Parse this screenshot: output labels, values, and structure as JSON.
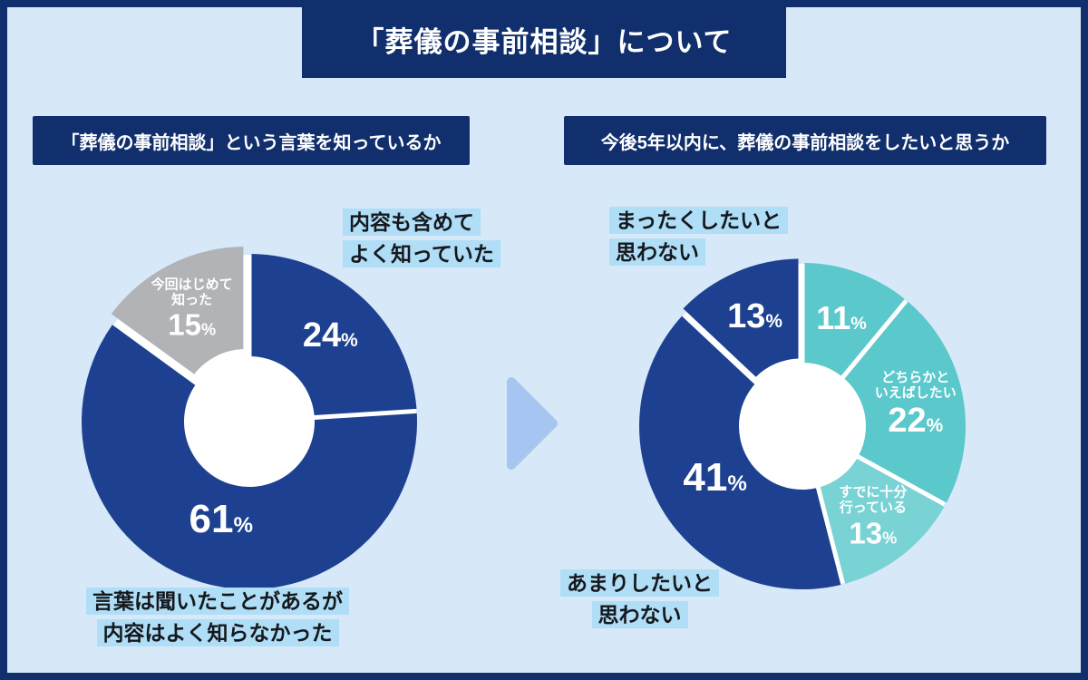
{
  "header": {
    "title": "「葬儀の事前相談」について"
  },
  "panels": [
    {
      "header": "「葬儀の事前相談」という言葉を知っているか",
      "callout_top": "内容も含めて\nよく知っていた",
      "callout_bottom": "言葉は聞いたことがあるが\n内容はよく知らなかった"
    },
    {
      "header": "今後5年以内に、葬儀の事前相談をしたいと思うか",
      "callout_top": "まったくしたいと\n思わない",
      "callout_bottom": "あまりしたいと\n思わない"
    }
  ],
  "colors": {
    "frame_navy": "#112f6d",
    "slice_navy": "#1d4190",
    "slice_teal": "#5bc8cb",
    "slice_teal_light": "#79d2d4",
    "slice_gray": "#b2b3b6",
    "background": "#d7e8f8",
    "label_highlight": "#b0def7",
    "arrow": "#a6c6f1"
  },
  "chart_data": [
    {
      "type": "pie",
      "title": "「葬儀の事前相談」という言葉を知っているか",
      "start_angle": "top",
      "direction": "clockwise",
      "inner_radius_ratio": 0.39,
      "segments": [
        {
          "label": "内容も含めてよく知っていた",
          "value": 24,
          "color": "#1d4190",
          "pct_size": 38
        },
        {
          "label": "言葉は聞いたことがあるが内容はよく知らなかった",
          "value": 61,
          "color": "#1d4190",
          "pct_size": 44,
          "label_r": 112
        },
        {
          "label": "今回はじめて知った",
          "value": 15,
          "color": "#b2b3b6",
          "pct_size": 33,
          "in_label": "今回はじめて\n知った",
          "explode": 9
        }
      ]
    },
    {
      "type": "pie",
      "title": "今後5年以内に、葬儀の事前相談をしたいと思うか",
      "start_angle": "top",
      "direction": "clockwise",
      "inner_radius_ratio": 0.39,
      "segments": [
        {
          "label": "",
          "value": 11,
          "color": "#5bc8cb",
          "pct_size": 36
        },
        {
          "label": "どちらかといえばしたい",
          "value": 22,
          "color": "#5bc8cb",
          "pct_size": 38,
          "in_label": "どちらかと\nいえばしたい"
        },
        {
          "label": "すでに十分行っている",
          "value": 13,
          "color": "#79d2d4",
          "pct_size": 33,
          "in_label": "すでに十分\n行っている"
        },
        {
          "label": "あまりしたいと思わない",
          "value": 41,
          "color": "#1d4190",
          "pct_size": 44,
          "label_r": 112
        },
        {
          "label": "まったくしたいと思わない",
          "value": 13,
          "color": "#1d4190",
          "pct_size": 38,
          "explode": 5
        }
      ]
    }
  ]
}
